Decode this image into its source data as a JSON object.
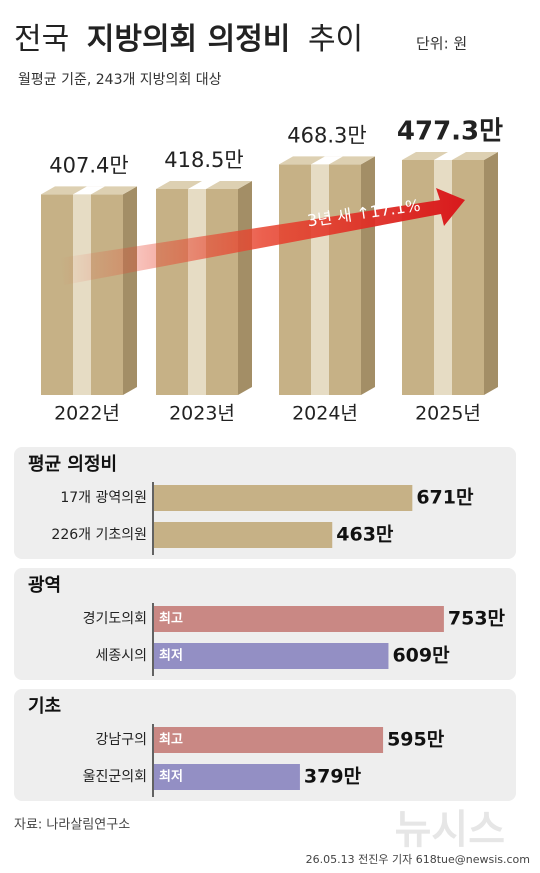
{
  "title": [
    "전국",
    "지방의회 의정비",
    "추이"
  ],
  "unit": "단위: 원",
  "subtitle": "월평균 기준, 243개 지방의회 대상",
  "chart_data": [
    {
      "type": "box",
      "categories": [
        "2022년",
        "2023년",
        "2024년",
        "2025년"
      ],
      "values": [
        407.4,
        418.5,
        468.3,
        477.3
      ],
      "value_labels": [
        "407.4만",
        "418.5만",
        "468.3만",
        "477.3만"
      ],
      "annotation": "3년 새 ↑17.1%",
      "color": "#c6b186"
    },
    {
      "type": "hbar",
      "title": "평균 의정비",
      "categories": [
        "17개 광역의원",
        "226개 기초의원"
      ],
      "values": [
        671,
        463
      ],
      "value_labels": [
        "671만",
        "463만"
      ],
      "colors": [
        "#c6b186",
        "#c6b186"
      ]
    },
    {
      "type": "hbar",
      "title": "광역",
      "categories": [
        "경기도의회",
        "세종시의"
      ],
      "values": [
        753,
        609
      ],
      "value_labels": [
        "753만",
        "609만"
      ],
      "tags": [
        "최고",
        "최저"
      ],
      "colors": [
        "#c98884",
        "#938fc4"
      ]
    },
    {
      "type": "hbar",
      "title": "기초",
      "categories": [
        "강남구의",
        "울진군의회"
      ],
      "values": [
        595,
        379
      ],
      "value_labels": [
        "595만",
        "379만"
      ],
      "tags": [
        "최고",
        "최저"
      ],
      "colors": [
        "#c98884",
        "#938fc4"
      ]
    }
  ],
  "source": "자료: 나라살림연구소",
  "credit": "26.05.13 전진우 기자 618tue@newsis.com",
  "watermark": "뉴시스"
}
